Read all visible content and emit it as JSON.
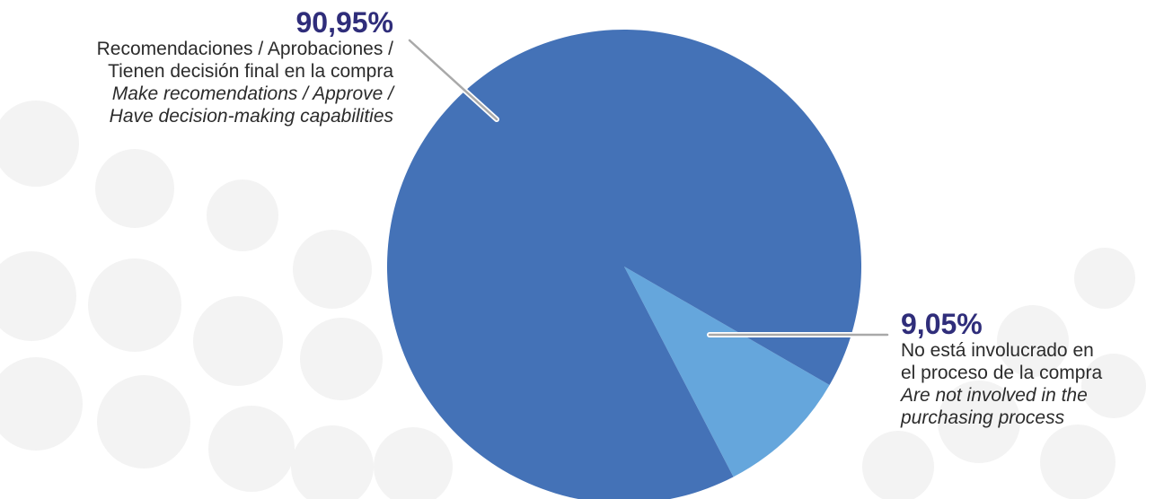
{
  "colors": {
    "series_primary": "#4472b7",
    "series_secondary": "#65a6dc",
    "percent_text": "#2f2d7a",
    "leader_line": "#a9a9a9"
  },
  "chart_data": {
    "type": "pie",
    "start_angle_deg": 120,
    "slices": [
      {
        "value": 90.95,
        "percent_label": "90,95%",
        "label_es": [
          "Recomendaciones / Aprobaciones /",
          "Tienen decisión final en la compra"
        ],
        "label_en": [
          "Make recomendations / Approve /",
          "Have decision-making capabilities"
        ],
        "color": "#4472b7"
      },
      {
        "value": 9.05,
        "percent_label": "9,05%",
        "label_es": [
          "No está involucrado en",
          "el proceso de la compra"
        ],
        "label_en": [
          "Are not involved in the",
          "purchasing process"
        ],
        "color": "#65a6dc"
      }
    ]
  }
}
